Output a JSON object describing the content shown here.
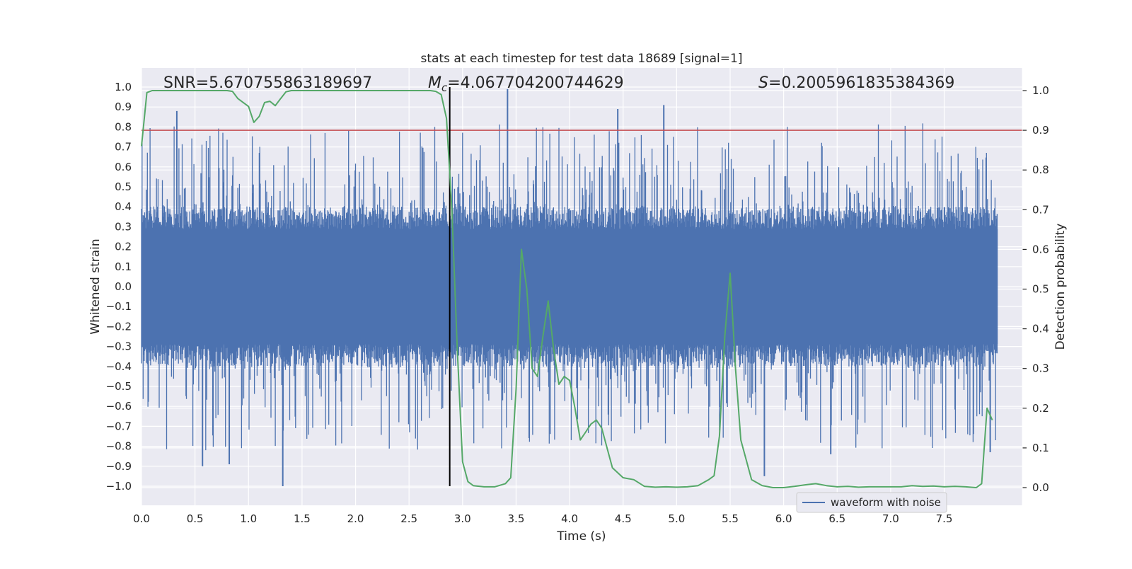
{
  "chart_data": {
    "type": "line",
    "title": "stats at each timestep for test data 18689 [signal=1]",
    "xlabel": "Time (s)",
    "ylabel": "Whitened strain",
    "ylabel_right": "Detection probability",
    "xlim": [
      0.0,
      8.0
    ],
    "ylim": [
      -1.1,
      1.1
    ],
    "ylim_right": [
      -0.05,
      1.04
    ],
    "x_ticks": [
      0.0,
      0.5,
      1.0,
      1.5,
      2.0,
      2.5,
      3.0,
      3.5,
      4.0,
      4.5,
      5.0,
      5.5,
      6.0,
      6.5,
      7.0,
      7.5
    ],
    "x_tick_labels": [
      "0.0",
      "0.5",
      "1.0",
      "1.5",
      "2.0",
      "2.5",
      "3.0",
      "3.5",
      "4.0",
      "4.5",
      "5.0",
      "5.5",
      "6.0",
      "6.5",
      "7.0",
      "7.5"
    ],
    "y_ticks": [
      1.0,
      0.9,
      0.8,
      0.7,
      0.6,
      0.5,
      0.4,
      0.3,
      0.2,
      0.1,
      0.0,
      -0.1,
      -0.2,
      -0.3,
      -0.4,
      -0.5,
      -0.6,
      -0.7,
      -0.8,
      -0.9,
      -1.0
    ],
    "y_tick_labels": [
      "1.0",
      "0.9",
      "0.8",
      "0.7",
      "0.6",
      "0.5",
      "0.4",
      "0.3",
      "0.2",
      "0.1",
      "0.0",
      "−0.1",
      "−0.2",
      "−0.3",
      "−0.4",
      "−0.5",
      "−0.6",
      "−0.7",
      "−0.8",
      "−0.9",
      "−1.0"
    ],
    "y_right_ticks": [
      1.0,
      0.9,
      0.8,
      0.7,
      0.6,
      0.5,
      0.4,
      0.3,
      0.2,
      0.1,
      0.0
    ],
    "y_right_tick_labels": [
      "1.0",
      "0.9",
      "0.8",
      "0.7",
      "0.6",
      "0.5",
      "0.4",
      "0.3",
      "0.2",
      "0.1",
      "0.0"
    ],
    "grid": true,
    "legend": {
      "location": "bottom-right",
      "entries": [
        "waveform with noise"
      ]
    },
    "annotations": {
      "snr": "SNR=5.670755863189697",
      "mc_symbol": "M",
      "mc_sub": "c",
      "mc_value": "=4.067704200744629",
      "s_symbol": "S",
      "s_value": "=0.2005961835384369"
    },
    "threshold_line": {
      "axis": "right",
      "value": 0.9,
      "color": "#c44e52"
    },
    "event_marker": {
      "x": 2.88,
      "y_range": [
        -1.0,
        1.0
      ],
      "color": "#000000"
    },
    "series": [
      {
        "name": "waveform with noise",
        "axis": "left",
        "color": "#4c72b0",
        "kind": "noise",
        "t_range": [
          0.0,
          8.0
        ],
        "envelope": {
          "typical": 0.4,
          "peak": 1.0
        },
        "extremes": [
          [
            0.33,
            0.88
          ],
          [
            0.57,
            -0.9
          ],
          [
            0.82,
            -0.89
          ],
          [
            1.32,
            -1.0
          ],
          [
            3.42,
            0.99
          ],
          [
            4.45,
            0.89
          ],
          [
            4.88,
            0.91
          ],
          [
            5.82,
            -0.95
          ],
          [
            6.44,
            -0.84
          ],
          [
            7.93,
            -0.83
          ]
        ]
      },
      {
        "name": "detection probability",
        "axis": "right",
        "color": "#55a868",
        "x": [
          0.0,
          0.05,
          0.1,
          0.2,
          0.3,
          0.4,
          0.5,
          0.6,
          0.7,
          0.8,
          0.85,
          0.9,
          0.95,
          1.0,
          1.05,
          1.1,
          1.15,
          1.2,
          1.25,
          1.3,
          1.35,
          1.4,
          1.45,
          1.5,
          1.6,
          1.7,
          1.8,
          1.9,
          2.0,
          2.1,
          2.2,
          2.3,
          2.4,
          2.5,
          2.6,
          2.7,
          2.75,
          2.8,
          2.85,
          2.9,
          2.95,
          3.0,
          3.05,
          3.1,
          3.2,
          3.3,
          3.4,
          3.45,
          3.5,
          3.55,
          3.6,
          3.65,
          3.7,
          3.75,
          3.8,
          3.85,
          3.9,
          3.95,
          4.0,
          4.05,
          4.1,
          4.15,
          4.2,
          4.25,
          4.3,
          4.35,
          4.4,
          4.5,
          4.6,
          4.7,
          4.8,
          4.9,
          5.0,
          5.1,
          5.2,
          5.3,
          5.35,
          5.4,
          5.45,
          5.5,
          5.55,
          5.6,
          5.7,
          5.8,
          5.9,
          6.0,
          6.1,
          6.2,
          6.3,
          6.4,
          6.5,
          6.6,
          6.7,
          6.8,
          6.9,
          7.0,
          7.1,
          7.2,
          7.3,
          7.4,
          7.5,
          7.6,
          7.7,
          7.8,
          7.85,
          7.9,
          7.95
        ],
        "y": [
          0.86,
          0.995,
          1.0,
          1.0,
          1.0,
          1.0,
          1.0,
          1.0,
          1.0,
          1.0,
          0.998,
          0.98,
          0.97,
          0.96,
          0.92,
          0.935,
          0.97,
          0.973,
          0.962,
          0.98,
          0.997,
          1.0,
          1.0,
          1.0,
          1.0,
          1.0,
          1.0,
          1.0,
          1.0,
          1.0,
          1.0,
          1.0,
          1.0,
          1.0,
          1.0,
          1.0,
          0.998,
          0.99,
          0.93,
          0.7,
          0.35,
          0.065,
          0.015,
          0.005,
          0.002,
          0.002,
          0.01,
          0.025,
          0.25,
          0.6,
          0.5,
          0.3,
          0.28,
          0.38,
          0.47,
          0.35,
          0.26,
          0.28,
          0.27,
          0.2,
          0.12,
          0.14,
          0.16,
          0.17,
          0.15,
          0.1,
          0.05,
          0.025,
          0.02,
          0.003,
          0.001,
          0.002,
          0.001,
          0.002,
          0.005,
          0.02,
          0.03,
          0.13,
          0.38,
          0.54,
          0.3,
          0.12,
          0.02,
          0.005,
          0.0,
          0.0,
          0.003,
          0.007,
          0.01,
          0.005,
          0.002,
          0.003,
          0.001,
          0.002,
          0.002,
          0.002,
          0.002,
          0.005,
          0.003,
          0.004,
          0.002,
          0.003,
          0.002,
          0.0,
          0.01,
          0.2,
          0.17
        ]
      }
    ]
  }
}
